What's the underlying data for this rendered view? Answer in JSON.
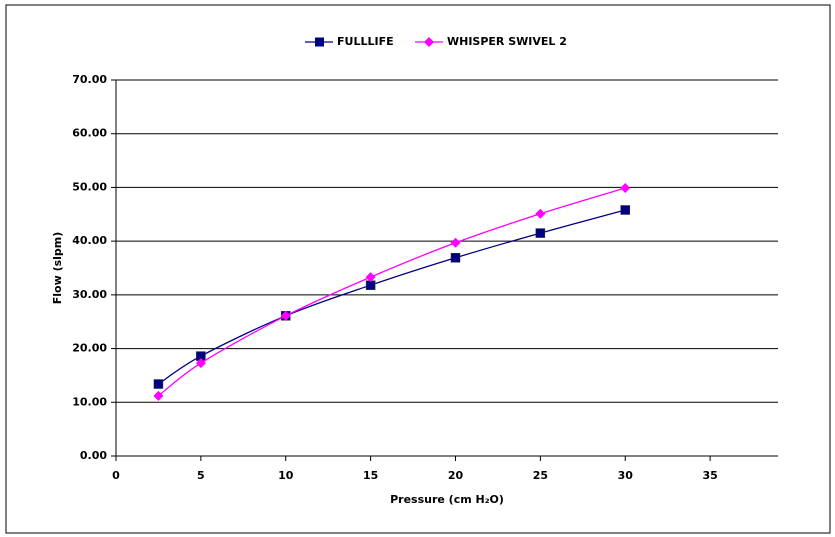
{
  "chart_data": {
    "type": "line",
    "x_label": "Pressure (cm H₂O)",
    "y_label": "Flow (slpm)",
    "x": [
      2.5,
      5,
      10,
      15,
      20,
      25,
      30
    ],
    "series": [
      {
        "name": "FULLLIFE",
        "color": "#000080",
        "marker": "square",
        "values": [
          13.4,
          18.6,
          26.1,
          31.8,
          36.9,
          41.5,
          45.8
        ]
      },
      {
        "name": "WHISPER SWIVEL 2",
        "color": "#ff00ff",
        "marker": "diamond",
        "values": [
          11.2,
          17.3,
          26.1,
          33.3,
          39.7,
          45.1,
          49.9
        ]
      }
    ],
    "xlim": [
      0,
      39
    ],
    "xticks": [
      0,
      5,
      10,
      15,
      20,
      25,
      30,
      35
    ],
    "ylim": [
      0,
      70
    ],
    "yticks": [
      {
        "value": 0,
        "label": "0.00"
      },
      {
        "value": 10,
        "label": "10.00"
      },
      {
        "value": 20,
        "label": "20.00"
      },
      {
        "value": 30,
        "label": "30.00"
      },
      {
        "value": 40,
        "label": "40.00"
      },
      {
        "value": 50,
        "label": "50.00"
      },
      {
        "value": 60,
        "label": "60.00"
      },
      {
        "value": 70,
        "label": "70.00"
      }
    ],
    "grid": true,
    "legend": "top"
  }
}
